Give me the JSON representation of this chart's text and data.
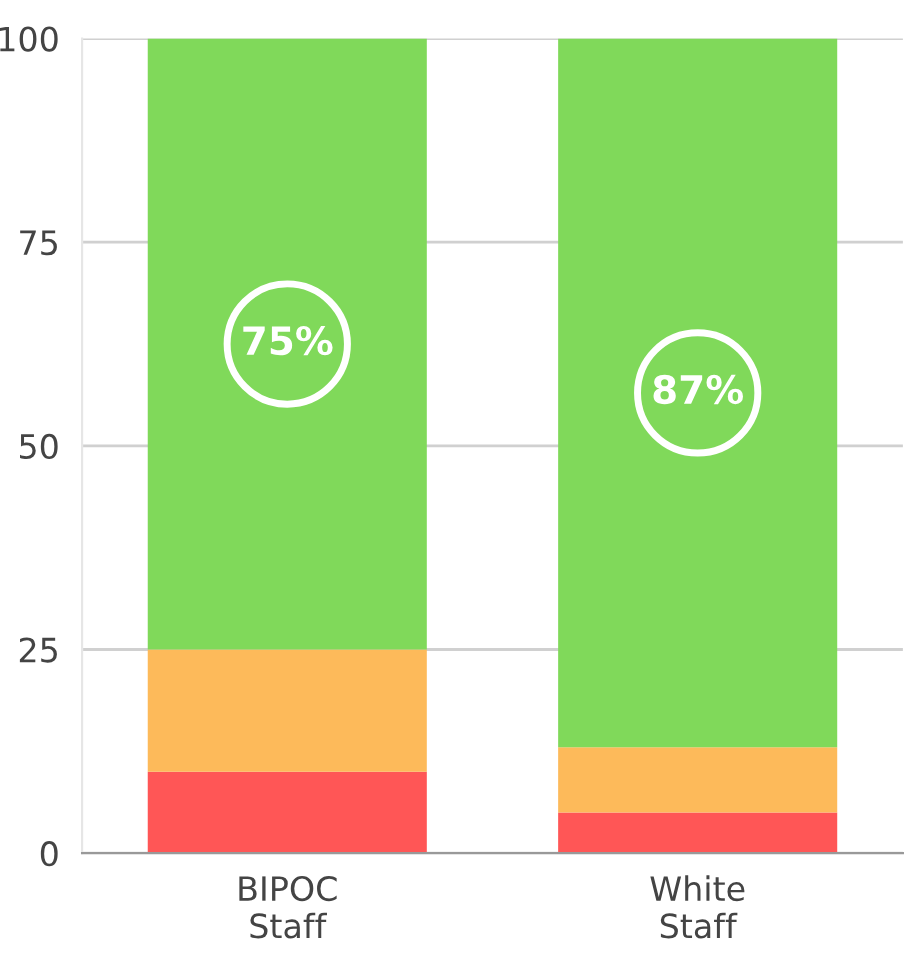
{
  "chart_data": {
    "type": "bar",
    "stacked": true,
    "categories": [
      "BIPOC\nStaff",
      "White\nStaff"
    ],
    "series": [
      {
        "color": "#ff5656",
        "values": [
          10,
          5
        ]
      },
      {
        "color": "#fdba5a",
        "values": [
          15,
          8
        ]
      },
      {
        "color": "#80d95a",
        "values": [
          75,
          87
        ],
        "value_labels": [
          "75%",
          "87%"
        ]
      }
    ],
    "ylim": [
      0,
      100
    ],
    "yticks": [
      0,
      25,
      50,
      75,
      100
    ],
    "grid": "y"
  }
}
